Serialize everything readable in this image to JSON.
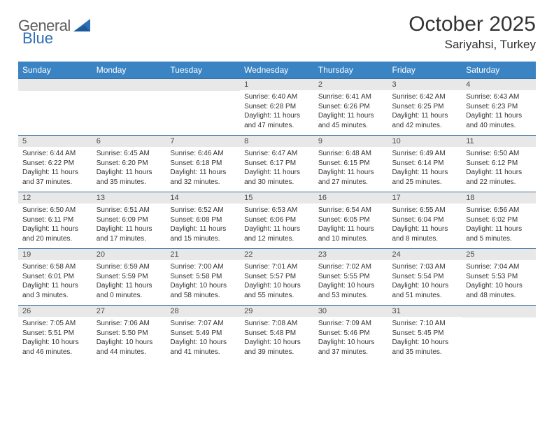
{
  "logo": {
    "text1": "General",
    "text2": "Blue"
  },
  "title": "October 2025",
  "location": "Sariyahsi, Turkey",
  "colors": {
    "header_bg": "#3b84c4",
    "header_fg": "#ffffff",
    "row_border": "#3b6fa0",
    "daynum_bg": "#e8e8e8",
    "text": "#333333",
    "logo_gray": "#5c5c5c",
    "logo_blue": "#2f6fb5"
  },
  "day_headers": [
    "Sunday",
    "Monday",
    "Tuesday",
    "Wednesday",
    "Thursday",
    "Friday",
    "Saturday"
  ],
  "weeks": [
    [
      {
        "day": "",
        "lines": []
      },
      {
        "day": "",
        "lines": []
      },
      {
        "day": "",
        "lines": []
      },
      {
        "day": "1",
        "lines": [
          "Sunrise: 6:40 AM",
          "Sunset: 6:28 PM",
          "Daylight: 11 hours and 47 minutes."
        ]
      },
      {
        "day": "2",
        "lines": [
          "Sunrise: 6:41 AM",
          "Sunset: 6:26 PM",
          "Daylight: 11 hours and 45 minutes."
        ]
      },
      {
        "day": "3",
        "lines": [
          "Sunrise: 6:42 AM",
          "Sunset: 6:25 PM",
          "Daylight: 11 hours and 42 minutes."
        ]
      },
      {
        "day": "4",
        "lines": [
          "Sunrise: 6:43 AM",
          "Sunset: 6:23 PM",
          "Daylight: 11 hours and 40 minutes."
        ]
      }
    ],
    [
      {
        "day": "5",
        "lines": [
          "Sunrise: 6:44 AM",
          "Sunset: 6:22 PM",
          "Daylight: 11 hours and 37 minutes."
        ]
      },
      {
        "day": "6",
        "lines": [
          "Sunrise: 6:45 AM",
          "Sunset: 6:20 PM",
          "Daylight: 11 hours and 35 minutes."
        ]
      },
      {
        "day": "7",
        "lines": [
          "Sunrise: 6:46 AM",
          "Sunset: 6:18 PM",
          "Daylight: 11 hours and 32 minutes."
        ]
      },
      {
        "day": "8",
        "lines": [
          "Sunrise: 6:47 AM",
          "Sunset: 6:17 PM",
          "Daylight: 11 hours and 30 minutes."
        ]
      },
      {
        "day": "9",
        "lines": [
          "Sunrise: 6:48 AM",
          "Sunset: 6:15 PM",
          "Daylight: 11 hours and 27 minutes."
        ]
      },
      {
        "day": "10",
        "lines": [
          "Sunrise: 6:49 AM",
          "Sunset: 6:14 PM",
          "Daylight: 11 hours and 25 minutes."
        ]
      },
      {
        "day": "11",
        "lines": [
          "Sunrise: 6:50 AM",
          "Sunset: 6:12 PM",
          "Daylight: 11 hours and 22 minutes."
        ]
      }
    ],
    [
      {
        "day": "12",
        "lines": [
          "Sunrise: 6:50 AM",
          "Sunset: 6:11 PM",
          "Daylight: 11 hours and 20 minutes."
        ]
      },
      {
        "day": "13",
        "lines": [
          "Sunrise: 6:51 AM",
          "Sunset: 6:09 PM",
          "Daylight: 11 hours and 17 minutes."
        ]
      },
      {
        "day": "14",
        "lines": [
          "Sunrise: 6:52 AM",
          "Sunset: 6:08 PM",
          "Daylight: 11 hours and 15 minutes."
        ]
      },
      {
        "day": "15",
        "lines": [
          "Sunrise: 6:53 AM",
          "Sunset: 6:06 PM",
          "Daylight: 11 hours and 12 minutes."
        ]
      },
      {
        "day": "16",
        "lines": [
          "Sunrise: 6:54 AM",
          "Sunset: 6:05 PM",
          "Daylight: 11 hours and 10 minutes."
        ]
      },
      {
        "day": "17",
        "lines": [
          "Sunrise: 6:55 AM",
          "Sunset: 6:04 PM",
          "Daylight: 11 hours and 8 minutes."
        ]
      },
      {
        "day": "18",
        "lines": [
          "Sunrise: 6:56 AM",
          "Sunset: 6:02 PM",
          "Daylight: 11 hours and 5 minutes."
        ]
      }
    ],
    [
      {
        "day": "19",
        "lines": [
          "Sunrise: 6:58 AM",
          "Sunset: 6:01 PM",
          "Daylight: 11 hours and 3 minutes."
        ]
      },
      {
        "day": "20",
        "lines": [
          "Sunrise: 6:59 AM",
          "Sunset: 5:59 PM",
          "Daylight: 11 hours and 0 minutes."
        ]
      },
      {
        "day": "21",
        "lines": [
          "Sunrise: 7:00 AM",
          "Sunset: 5:58 PM",
          "Daylight: 10 hours and 58 minutes."
        ]
      },
      {
        "day": "22",
        "lines": [
          "Sunrise: 7:01 AM",
          "Sunset: 5:57 PM",
          "Daylight: 10 hours and 55 minutes."
        ]
      },
      {
        "day": "23",
        "lines": [
          "Sunrise: 7:02 AM",
          "Sunset: 5:55 PM",
          "Daylight: 10 hours and 53 minutes."
        ]
      },
      {
        "day": "24",
        "lines": [
          "Sunrise: 7:03 AM",
          "Sunset: 5:54 PM",
          "Daylight: 10 hours and 51 minutes."
        ]
      },
      {
        "day": "25",
        "lines": [
          "Sunrise: 7:04 AM",
          "Sunset: 5:53 PM",
          "Daylight: 10 hours and 48 minutes."
        ]
      }
    ],
    [
      {
        "day": "26",
        "lines": [
          "Sunrise: 7:05 AM",
          "Sunset: 5:51 PM",
          "Daylight: 10 hours and 46 minutes."
        ]
      },
      {
        "day": "27",
        "lines": [
          "Sunrise: 7:06 AM",
          "Sunset: 5:50 PM",
          "Daylight: 10 hours and 44 minutes."
        ]
      },
      {
        "day": "28",
        "lines": [
          "Sunrise: 7:07 AM",
          "Sunset: 5:49 PM",
          "Daylight: 10 hours and 41 minutes."
        ]
      },
      {
        "day": "29",
        "lines": [
          "Sunrise: 7:08 AM",
          "Sunset: 5:48 PM",
          "Daylight: 10 hours and 39 minutes."
        ]
      },
      {
        "day": "30",
        "lines": [
          "Sunrise: 7:09 AM",
          "Sunset: 5:46 PM",
          "Daylight: 10 hours and 37 minutes."
        ]
      },
      {
        "day": "31",
        "lines": [
          "Sunrise: 7:10 AM",
          "Sunset: 5:45 PM",
          "Daylight: 10 hours and 35 minutes."
        ]
      },
      {
        "day": "",
        "lines": []
      }
    ]
  ]
}
